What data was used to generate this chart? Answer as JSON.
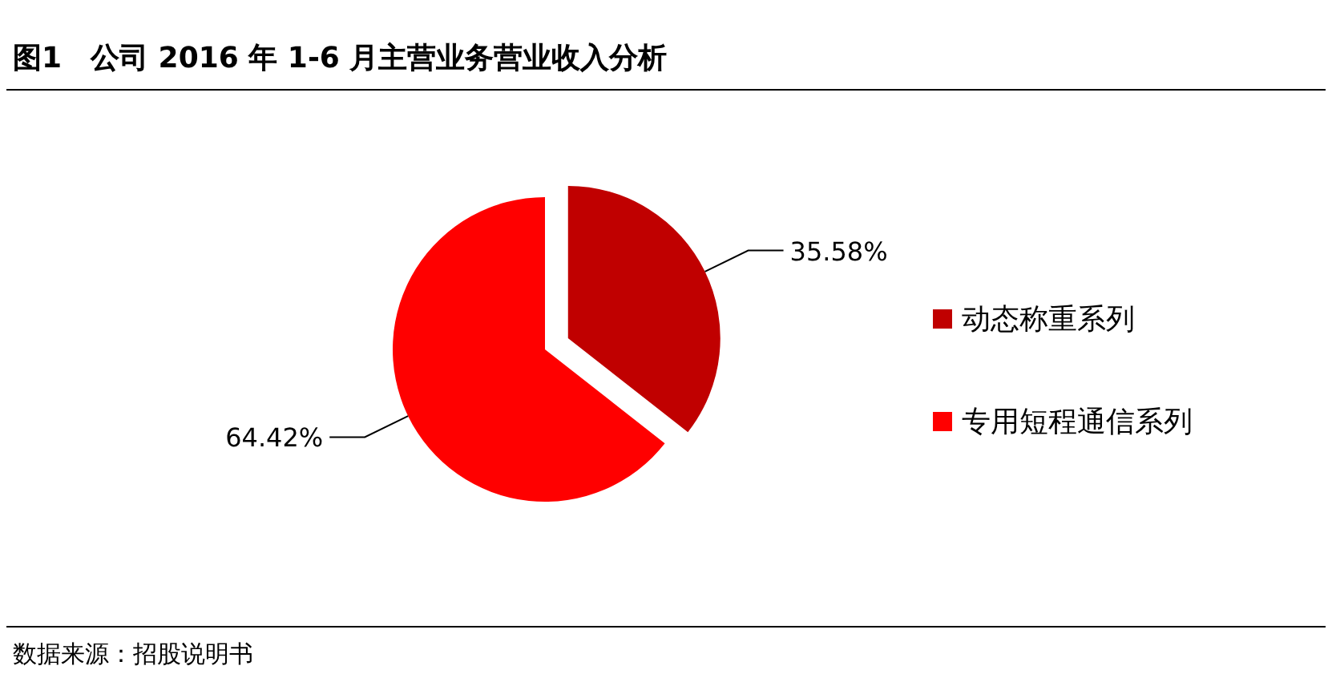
{
  "chart_data": {
    "type": "pie",
    "title": "图1　公司 2016 年 1-6 月主营业务营业收入分析",
    "categories": [
      "动态称重系列",
      "专用短程通信系列"
    ],
    "values": [
      35.58,
      64.42
    ],
    "colors": [
      "#c00000",
      "#ff0000"
    ],
    "value_labels": [
      "35.58%",
      "64.42%"
    ],
    "legend": "right",
    "annotations": [
      "数据来源：招股说明书"
    ]
  }
}
